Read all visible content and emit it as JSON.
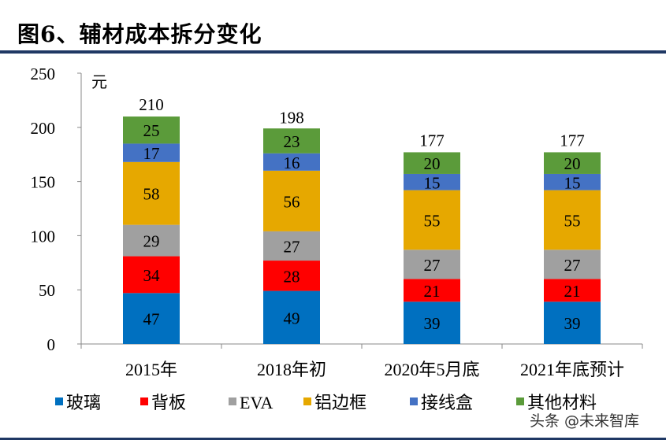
{
  "title": "图6、辅材成本拆分变化",
  "watermark": "头条 @未来智库",
  "chart_data": {
    "type": "bar",
    "stacked": true,
    "unit_label": "元",
    "categories": [
      "2015年",
      "2018年初",
      "2020年5月底",
      "2021年底预计"
    ],
    "series": [
      {
        "name": "玻璃",
        "color": "#0070c0",
        "values": [
          47,
          49,
          39,
          39
        ]
      },
      {
        "name": "背板",
        "color": "#ff0000",
        "values": [
          34,
          28,
          21,
          21
        ]
      },
      {
        "name": "EVA",
        "color": "#a0a0a0",
        "values": [
          29,
          27,
          27,
          27
        ]
      },
      {
        "name": "铝边框",
        "color": "#e6a800",
        "values": [
          58,
          56,
          55,
          55
        ]
      },
      {
        "name": "接线盒",
        "color": "#4472c4",
        "values": [
          17,
          16,
          15,
          15
        ]
      },
      {
        "name": "其他材料",
        "color": "#5b9b3a",
        "values": [
          25,
          23,
          20,
          20
        ]
      }
    ],
    "totals": [
      210,
      198,
      177,
      177
    ],
    "ylim": [
      0,
      250
    ],
    "yticks": [
      0,
      50,
      100,
      150,
      200,
      250
    ],
    "grid": false,
    "legend": "bottom"
  }
}
